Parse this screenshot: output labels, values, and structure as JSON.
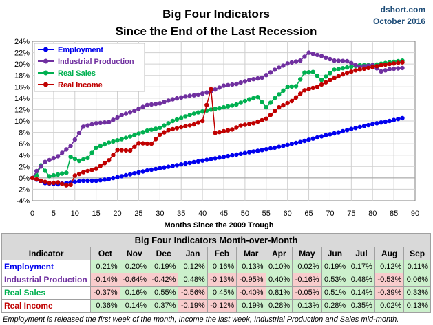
{
  "chart_data": {
    "type": "line",
    "title": "Big Four Indicators",
    "subtitle": "Since the End of the Last Recession",
    "source_label": "dshort.com",
    "date_label": "October 2016",
    "xlabel": "Months Since the 2009 Trough",
    "ylabel": "",
    "xlim": [
      0,
      90
    ],
    "ylim": [
      -4,
      24
    ],
    "x_ticks": [
      0,
      5,
      10,
      15,
      20,
      25,
      30,
      35,
      40,
      45,
      50,
      55,
      60,
      65,
      70,
      75,
      80,
      85,
      90
    ],
    "y_ticks": [
      "-4%",
      "-2%",
      "0%",
      "2%",
      "4%",
      "6%",
      "8%",
      "10%",
      "12%",
      "14%",
      "16%",
      "18%",
      "20%",
      "22%",
      "24%"
    ],
    "grid": true,
    "legend_position": "top-left",
    "series": [
      {
        "name": "Employment",
        "color": "#0000ee",
        "anchors": [
          [
            0,
            0
          ],
          [
            1,
            -0.3
          ],
          [
            3,
            -0.9
          ],
          [
            6,
            -1.1
          ],
          [
            9,
            -0.8
          ],
          [
            12,
            -0.5
          ],
          [
            15,
            -0.5
          ],
          [
            18,
            -0.2
          ],
          [
            21,
            0.3
          ],
          [
            24,
            0.8
          ],
          [
            27,
            1.3
          ],
          [
            30,
            1.7
          ],
          [
            33,
            2.1
          ],
          [
            36,
            2.5
          ],
          [
            39,
            2.9
          ],
          [
            42,
            3.3
          ],
          [
            45,
            3.7
          ],
          [
            48,
            4.1
          ],
          [
            51,
            4.5
          ],
          [
            54,
            4.9
          ],
          [
            57,
            5.3
          ],
          [
            60,
            5.8
          ],
          [
            63,
            6.3
          ],
          [
            66,
            6.9
          ],
          [
            69,
            7.5
          ],
          [
            72,
            8.0
          ],
          [
            75,
            8.6
          ],
          [
            78,
            9.1
          ],
          [
            81,
            9.6
          ],
          [
            84,
            10.0
          ],
          [
            87,
            10.5
          ]
        ]
      },
      {
        "name": "Industrial Production",
        "color": "#7030a0",
        "anchors": [
          [
            0,
            0
          ],
          [
            1,
            1.2
          ],
          [
            3,
            2.8
          ],
          [
            6,
            3.8
          ],
          [
            9,
            5.6
          ],
          [
            12,
            9.0
          ],
          [
            15,
            9.6
          ],
          [
            18,
            9.8
          ],
          [
            21,
            11.0
          ],
          [
            24,
            11.8
          ],
          [
            27,
            12.8
          ],
          [
            30,
            13.1
          ],
          [
            33,
            13.8
          ],
          [
            36,
            14.3
          ],
          [
            39,
            14.6
          ],
          [
            42,
            15.2
          ],
          [
            45,
            16.2
          ],
          [
            48,
            16.5
          ],
          [
            51,
            17.2
          ],
          [
            54,
            17.6
          ],
          [
            57,
            19.0
          ],
          [
            60,
            20.1
          ],
          [
            63,
            20.6
          ],
          [
            65,
            22.0
          ],
          [
            68,
            21.4
          ],
          [
            71,
            20.6
          ],
          [
            74,
            20.5
          ],
          [
            77,
            19.5
          ],
          [
            80,
            19.8
          ],
          [
            82,
            18.7
          ],
          [
            84,
            19.1
          ],
          [
            87,
            19.3
          ]
        ]
      },
      {
        "name": "Real Sales",
        "color": "#00b050",
        "anchors": [
          [
            0,
            0
          ],
          [
            1,
            0.4
          ],
          [
            2,
            2.2
          ],
          [
            4,
            0.3
          ],
          [
            6,
            0.6
          ],
          [
            8,
            0.9
          ],
          [
            9,
            3.7
          ],
          [
            11,
            3.0
          ],
          [
            13,
            3.5
          ],
          [
            15,
            5.3
          ],
          [
            18,
            6.2
          ],
          [
            21,
            6.8
          ],
          [
            24,
            7.5
          ],
          [
            27,
            8.3
          ],
          [
            30,
            8.8
          ],
          [
            33,
            10.0
          ],
          [
            36,
            10.8
          ],
          [
            39,
            11.5
          ],
          [
            42,
            12.0
          ],
          [
            45,
            12.4
          ],
          [
            48,
            12.9
          ],
          [
            51,
            13.8
          ],
          [
            53,
            14.2
          ],
          [
            55,
            12.4
          ],
          [
            57,
            14.0
          ],
          [
            60,
            16.0
          ],
          [
            62,
            16.1
          ],
          [
            64,
            18.5
          ],
          [
            66,
            18.6
          ],
          [
            68,
            17.2
          ],
          [
            71,
            19.0
          ],
          [
            74,
            19.4
          ],
          [
            77,
            19.8
          ],
          [
            80,
            19.8
          ],
          [
            84,
            20.3
          ],
          [
            87,
            20.6
          ]
        ]
      },
      {
        "name": "Real Income",
        "color": "#c00000",
        "anchors": [
          [
            0,
            0
          ],
          [
            2,
            -0.5
          ],
          [
            4,
            -0.9
          ],
          [
            6,
            -0.8
          ],
          [
            8,
            -1.3
          ],
          [
            9,
            -1.2
          ],
          [
            10,
            0.4
          ],
          [
            12,
            1.0
          ],
          [
            15,
            1.6
          ],
          [
            18,
            3.1
          ],
          [
            20,
            4.9
          ],
          [
            23,
            4.8
          ],
          [
            25,
            6.1
          ],
          [
            28,
            6.0
          ],
          [
            30,
            7.6
          ],
          [
            32,
            8.4
          ],
          [
            35,
            8.9
          ],
          [
            38,
            9.4
          ],
          [
            40,
            10.0
          ],
          [
            42,
            15.6
          ],
          [
            43,
            7.9
          ],
          [
            45,
            8.2
          ],
          [
            47,
            8.5
          ],
          [
            49,
            9.2
          ],
          [
            52,
            9.6
          ],
          [
            55,
            10.4
          ],
          [
            58,
            12.4
          ],
          [
            61,
            13.5
          ],
          [
            64,
            15.4
          ],
          [
            67,
            16.0
          ],
          [
            70,
            17.2
          ],
          [
            73,
            18.2
          ],
          [
            76,
            18.9
          ],
          [
            79,
            19.3
          ],
          [
            82,
            19.8
          ],
          [
            85,
            20.1
          ],
          [
            87,
            20.3
          ]
        ]
      }
    ]
  },
  "table": {
    "title": "Big Four Indicators Month-over-Month",
    "header_label": "Indicator",
    "months": [
      "Oct",
      "Nov",
      "Dec",
      "Jan",
      "Feb",
      "Mar",
      "Apr",
      "May",
      "Jun",
      "Jul",
      "Aug",
      "Sep"
    ],
    "rows": [
      {
        "label": "Employment",
        "color": "#0000ee",
        "values": [
          "0.21%",
          "0.20%",
          "0.19%",
          "0.12%",
          "0.16%",
          "0.13%",
          "0.10%",
          "0.02%",
          "0.19%",
          "0.17%",
          "0.12%",
          "0.11%"
        ]
      },
      {
        "label": "Industrial Production",
        "color": "#7030a0",
        "values": [
          "-0.14%",
          "-0.64%",
          "-0.42%",
          "0.48%",
          "-0.13%",
          "-0.95%",
          "0.40%",
          "-0.16%",
          "0.53%",
          "0.48%",
          "-0.53%",
          "0.06%"
        ]
      },
      {
        "label": "Real Sales",
        "color": "#00b050",
        "values": [
          "-0.37%",
          "0.16%",
          "0.55%",
          "-0.56%",
          "0.45%",
          "-0.40%",
          "0.81%",
          "-0.05%",
          "0.51%",
          "0.14%",
          "-0.39%",
          "0.33%"
        ]
      },
      {
        "label": "Real Income",
        "color": "#c00000",
        "values": [
          "0.36%",
          "0.14%",
          "0.37%",
          "-0.19%",
          "-0.12%",
          "0.19%",
          "0.28%",
          "0.13%",
          "0.28%",
          "0.35%",
          "0.02%",
          "0.13%"
        ]
      }
    ],
    "positive_color": "#ccf0cc",
    "negative_color": "#f8cccc"
  },
  "footnote": "Employment is released the first week of the month, Income the last week, Industrial Production and Sales mid-month."
}
